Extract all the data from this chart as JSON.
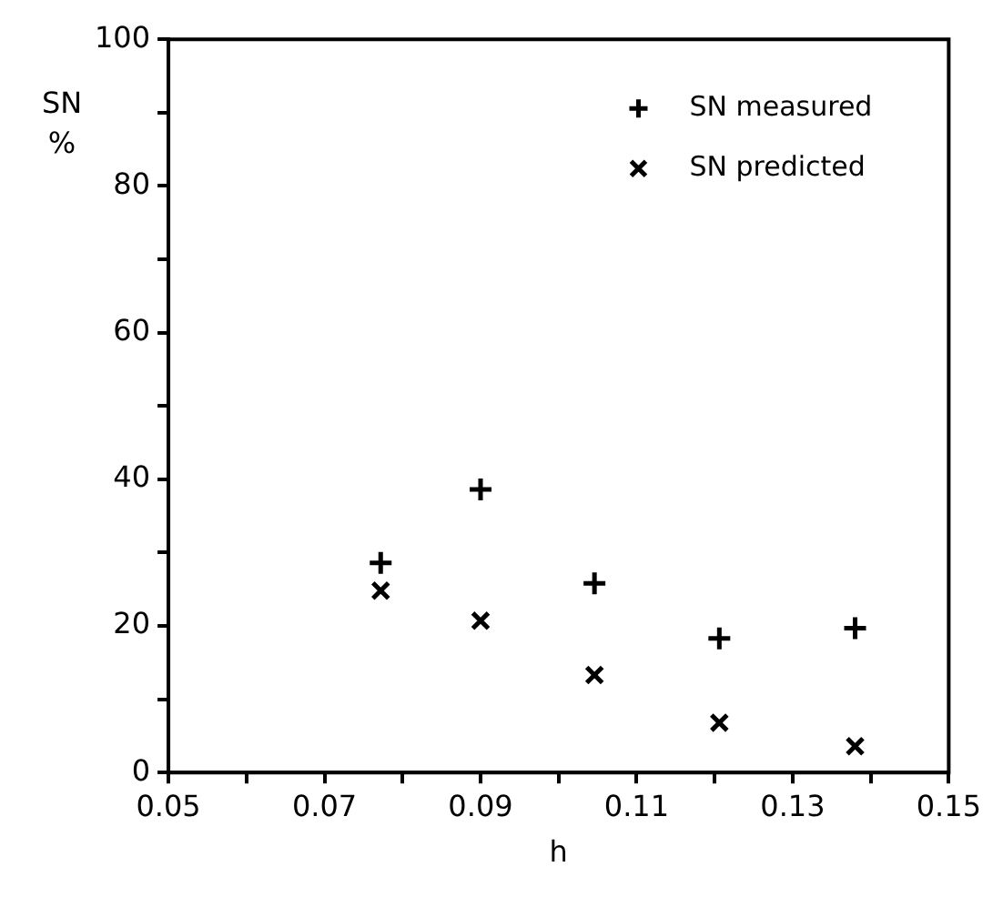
{
  "chart_data": {
    "type": "scatter",
    "xlabel": "h",
    "ylabel": "SN %",
    "series": [
      {
        "name": "SN measured",
        "color": "#000000",
        "marker": "cross",
        "x": [
          0.0772,
          0.09,
          0.1046,
          0.1206,
          0.138
        ],
        "values": [
          28.6,
          38.6,
          25.8,
          18.3,
          19.7
        ]
      },
      {
        "name": "SN predicted",
        "color": "#000000",
        "marker": "x",
        "x": [
          0.0772,
          0.09,
          0.1046,
          0.1206,
          0.138
        ],
        "values": [
          24.8,
          20.7,
          13.3,
          6.8,
          3.6
        ]
      }
    ],
    "xlim": [
      0.05,
      0.15
    ],
    "xticks": [
      0.05,
      {
        "value": 0.06,
        "label": null
      },
      0.07,
      {
        "value": 0.08,
        "label": null
      },
      0.09,
      {
        "value": 0.1,
        "label": null
      },
      0.11,
      {
        "value": 0.12,
        "label": null
      },
      0.13,
      {
        "value": 0.14,
        "label": null
      },
      0.15
    ],
    "ylim": [
      0,
      100
    ],
    "yticks": [
      0,
      {
        "value": 10,
        "label": null
      },
      20,
      {
        "value": 30,
        "label": null
      },
      40,
      {
        "value": 50,
        "label": null
      },
      60,
      {
        "value": 70,
        "label": null
      },
      80,
      {
        "value": 90,
        "label": null
      },
      100
    ],
    "grid": false,
    "legend": "top right"
  }
}
